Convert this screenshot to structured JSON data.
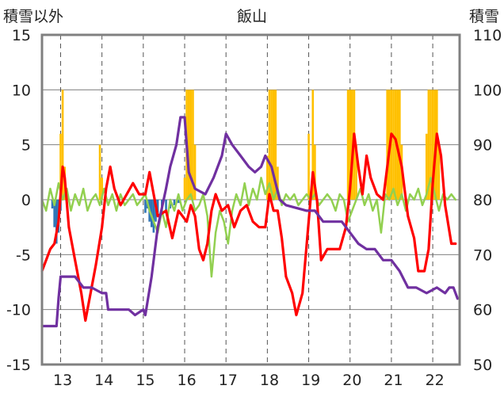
{
  "chart_data": {
    "type": "line",
    "title": "飯山",
    "left_axis_label": "積雪以外",
    "right_axis_label": "積雪",
    "x_ticks": [
      "13",
      "14",
      "15",
      "16",
      "17",
      "18",
      "19",
      "20",
      "21",
      "22"
    ],
    "y_left": {
      "range": [
        -15,
        15
      ],
      "ticks": [
        "15",
        "10",
        "5",
        "0",
        "-5",
        "-10",
        "-15"
      ]
    },
    "y_right": {
      "range": [
        50,
        110
      ],
      "ticks": [
        "110",
        "100",
        "90",
        "80",
        "70",
        "60",
        "50"
      ]
    },
    "x_range": [
      12.5,
      22.6
    ],
    "grid": {
      "vertical": "dashed",
      "horizontal": "solid"
    },
    "colors": {
      "snowfall_bar": "#FFC000",
      "negative_bar": "#2E75B6",
      "temperature": "#FF0000",
      "snow_depth": "#7030A0",
      "green_series": "#92D050",
      "grid": "#808080",
      "frame": "#808080"
    },
    "series": [
      {
        "key": "snowfall",
        "kind": "bar",
        "axis": "left",
        "points": [
          [
            12.95,
            6
          ],
          [
            13.0,
            10
          ],
          [
            13.05,
            3
          ],
          [
            13.9,
            5
          ],
          [
            13.95,
            2
          ],
          [
            15.95,
            2
          ],
          [
            16.0,
            10
          ],
          [
            16.05,
            10
          ],
          [
            16.1,
            10
          ],
          [
            16.15,
            10
          ],
          [
            16.2,
            5
          ],
          [
            17.95,
            4
          ],
          [
            18.0,
            10
          ],
          [
            18.05,
            10
          ],
          [
            18.1,
            10
          ],
          [
            18.15,
            10
          ],
          [
            18.2,
            3
          ],
          [
            18.95,
            6
          ],
          [
            19.05,
            10
          ],
          [
            19.1,
            5
          ],
          [
            19.9,
            10
          ],
          [
            19.95,
            10
          ],
          [
            20.0,
            10
          ],
          [
            20.05,
            10
          ],
          [
            20.1,
            5
          ],
          [
            20.85,
            10
          ],
          [
            20.9,
            10
          ],
          [
            20.95,
            10
          ],
          [
            21.0,
            10
          ],
          [
            21.05,
            10
          ],
          [
            21.1,
            10
          ],
          [
            21.15,
            10
          ],
          [
            21.2,
            5
          ],
          [
            21.8,
            6
          ],
          [
            21.85,
            10
          ],
          [
            21.9,
            10
          ],
          [
            21.95,
            10
          ],
          [
            22.0,
            10
          ],
          [
            22.05,
            10
          ],
          [
            22.1,
            5
          ]
        ]
      },
      {
        "key": "negative",
        "kind": "bar",
        "axis": "left",
        "points": [
          [
            12.75,
            -0.8
          ],
          [
            12.8,
            -2.5
          ],
          [
            12.85,
            -4
          ],
          [
            12.9,
            -3
          ],
          [
            12.95,
            -1
          ],
          [
            15.0,
            -1.2
          ],
          [
            15.05,
            -0.8
          ],
          [
            15.1,
            -2
          ],
          [
            15.15,
            -2.5
          ],
          [
            15.2,
            -3
          ],
          [
            15.25,
            -2
          ],
          [
            15.3,
            -1.5
          ],
          [
            15.4,
            -1.2
          ],
          [
            15.5,
            -1
          ],
          [
            15.6,
            -0.8
          ],
          [
            15.7,
            -0.5
          ],
          [
            15.8,
            -0.3
          ]
        ]
      },
      {
        "key": "temperature",
        "kind": "line",
        "axis": "left",
        "points": [
          [
            12.5,
            -6.5
          ],
          [
            12.6,
            -5.5
          ],
          [
            12.7,
            -4.5
          ],
          [
            12.8,
            -4
          ],
          [
            12.9,
            -2
          ],
          [
            13.0,
            3
          ],
          [
            13.05,
            2
          ],
          [
            13.15,
            -2.5
          ],
          [
            13.3,
            -5.5
          ],
          [
            13.45,
            -8.5
          ],
          [
            13.55,
            -11
          ],
          [
            13.65,
            -9
          ],
          [
            13.8,
            -6
          ],
          [
            13.95,
            -2.5
          ],
          [
            14.05,
            1
          ],
          [
            14.15,
            3
          ],
          [
            14.25,
            1
          ],
          [
            14.4,
            -0.5
          ],
          [
            14.55,
            0.5
          ],
          [
            14.7,
            1.5
          ],
          [
            14.85,
            0.5
          ],
          [
            15.0,
            0.5
          ],
          [
            15.1,
            2.5
          ],
          [
            15.2,
            0.5
          ],
          [
            15.3,
            -1.5
          ],
          [
            15.5,
            -1
          ],
          [
            15.65,
            -3.5
          ],
          [
            15.8,
            -1
          ],
          [
            15.9,
            -1.5
          ],
          [
            16.0,
            -2
          ],
          [
            16.1,
            -0.5
          ],
          [
            16.2,
            -1.5
          ],
          [
            16.3,
            -4.5
          ],
          [
            16.4,
            -5.5
          ],
          [
            16.5,
            -4
          ],
          [
            16.6,
            -1
          ],
          [
            16.7,
            0.5
          ],
          [
            16.85,
            -1
          ],
          [
            17.0,
            -0.5
          ],
          [
            17.15,
            -2.5
          ],
          [
            17.3,
            -1
          ],
          [
            17.45,
            -0.5
          ],
          [
            17.6,
            -2
          ],
          [
            17.75,
            -2.5
          ],
          [
            17.9,
            -2.5
          ],
          [
            18.0,
            0.5
          ],
          [
            18.1,
            -1
          ],
          [
            18.2,
            -1
          ],
          [
            18.3,
            -3.5
          ],
          [
            18.4,
            -7
          ],
          [
            18.55,
            -8.5
          ],
          [
            18.65,
            -10.5
          ],
          [
            18.8,
            -8.5
          ],
          [
            18.95,
            -2
          ],
          [
            19.05,
            2.5
          ],
          [
            19.15,
            0
          ],
          [
            19.25,
            -5.5
          ],
          [
            19.4,
            -4.5
          ],
          [
            19.55,
            -4.5
          ],
          [
            19.7,
            -4.5
          ],
          [
            19.85,
            -2.5
          ],
          [
            19.95,
            1
          ],
          [
            20.05,
            6
          ],
          [
            20.15,
            3
          ],
          [
            20.25,
            0.5
          ],
          [
            20.35,
            4
          ],
          [
            20.45,
            2
          ],
          [
            20.6,
            0.5
          ],
          [
            20.75,
            0
          ],
          [
            20.85,
            3
          ],
          [
            20.95,
            6
          ],
          [
            21.05,
            5.5
          ],
          [
            21.2,
            3
          ],
          [
            21.35,
            -1.5
          ],
          [
            21.5,
            -3.5
          ],
          [
            21.6,
            -6.5
          ],
          [
            21.75,
            -6.5
          ],
          [
            21.85,
            -4.5
          ],
          [
            21.95,
            1.5
          ],
          [
            22.05,
            6
          ],
          [
            22.15,
            4
          ],
          [
            22.25,
            -0.5
          ],
          [
            22.4,
            -4
          ],
          [
            22.5,
            -4
          ]
        ]
      },
      {
        "key": "snow_depth",
        "kind": "line",
        "axis": "right",
        "points": [
          [
            12.5,
            57
          ],
          [
            12.85,
            57
          ],
          [
            12.9,
            62
          ],
          [
            12.95,
            66
          ],
          [
            13.3,
            66
          ],
          [
            13.5,
            64
          ],
          [
            13.7,
            64
          ],
          [
            13.95,
            63
          ],
          [
            14.05,
            63
          ],
          [
            14.1,
            60
          ],
          [
            14.6,
            60
          ],
          [
            14.75,
            59
          ],
          [
            14.95,
            60
          ],
          [
            15.0,
            59
          ],
          [
            15.15,
            66
          ],
          [
            15.3,
            75
          ],
          [
            15.5,
            82
          ],
          [
            15.6,
            86
          ],
          [
            15.75,
            90
          ],
          [
            15.85,
            95
          ],
          [
            15.95,
            95
          ],
          [
            16.05,
            85
          ],
          [
            16.2,
            82
          ],
          [
            16.45,
            81
          ],
          [
            16.65,
            84
          ],
          [
            16.85,
            88
          ],
          [
            16.95,
            92
          ],
          [
            17.1,
            90
          ],
          [
            17.3,
            88
          ],
          [
            17.5,
            86
          ],
          [
            17.65,
            85
          ],
          [
            17.8,
            86
          ],
          [
            17.9,
            88
          ],
          [
            18.05,
            86
          ],
          [
            18.25,
            80
          ],
          [
            18.4,
            79
          ],
          [
            18.9,
            78
          ],
          [
            19.1,
            78
          ],
          [
            19.3,
            76
          ],
          [
            19.75,
            76
          ],
          [
            19.95,
            74
          ],
          [
            20.15,
            72
          ],
          [
            20.35,
            71
          ],
          [
            20.55,
            71
          ],
          [
            20.75,
            69
          ],
          [
            20.95,
            69
          ],
          [
            21.15,
            67
          ],
          [
            21.35,
            64
          ],
          [
            21.55,
            64
          ],
          [
            21.8,
            63
          ],
          [
            22.05,
            64
          ],
          [
            22.25,
            63
          ],
          [
            22.35,
            64
          ],
          [
            22.45,
            64
          ],
          [
            22.55,
            62
          ]
        ]
      },
      {
        "key": "green",
        "kind": "line",
        "axis": "left",
        "points": [
          [
            12.5,
            0
          ],
          [
            12.6,
            -1
          ],
          [
            12.7,
            1
          ],
          [
            12.8,
            -0.5
          ],
          [
            12.9,
            1.5
          ],
          [
            13.0,
            0
          ],
          [
            13.1,
            1
          ],
          [
            13.2,
            -1
          ],
          [
            13.3,
            0.5
          ],
          [
            13.4,
            -0.5
          ],
          [
            13.5,
            1
          ],
          [
            13.6,
            -1
          ],
          [
            13.7,
            0
          ],
          [
            13.8,
            0.5
          ],
          [
            13.9,
            -0.5
          ],
          [
            14.0,
            1
          ],
          [
            14.1,
            -0.5
          ],
          [
            14.2,
            0.5
          ],
          [
            14.3,
            -1
          ],
          [
            14.4,
            0.5
          ],
          [
            14.5,
            -0.5
          ],
          [
            14.6,
            0
          ],
          [
            14.7,
            0.5
          ],
          [
            14.8,
            -0.5
          ],
          [
            14.9,
            0
          ],
          [
            15.0,
            0.5
          ],
          [
            15.1,
            -1
          ],
          [
            15.2,
            -2
          ],
          [
            15.3,
            -3
          ],
          [
            15.4,
            -1
          ],
          [
            15.5,
            -2.5
          ],
          [
            15.6,
            0
          ],
          [
            15.7,
            -1
          ],
          [
            15.8,
            0.5
          ],
          [
            15.9,
            -1
          ],
          [
            16.0,
            0
          ],
          [
            16.1,
            0.5
          ],
          [
            16.2,
            -1
          ],
          [
            16.3,
            -0.5
          ],
          [
            16.4,
            0.5
          ],
          [
            16.5,
            -1.5
          ],
          [
            16.6,
            -7
          ],
          [
            16.7,
            -3
          ],
          [
            16.8,
            -1
          ],
          [
            16.9,
            -2
          ],
          [
            17.0,
            -4
          ],
          [
            17.1,
            -1
          ],
          [
            17.2,
            0.5
          ],
          [
            17.3,
            -0.5
          ],
          [
            17.4,
            1.5
          ],
          [
            17.5,
            -0.5
          ],
          [
            17.6,
            1
          ],
          [
            17.7,
            0
          ],
          [
            17.8,
            2
          ],
          [
            17.9,
            0.5
          ],
          [
            18.0,
            1.5
          ],
          [
            18.1,
            0
          ],
          [
            18.2,
            1
          ],
          [
            18.3,
            -0.5
          ],
          [
            18.4,
            0.5
          ],
          [
            18.5,
            0
          ],
          [
            18.6,
            0.5
          ],
          [
            18.7,
            -0.5
          ],
          [
            18.8,
            0
          ],
          [
            18.9,
            0.5
          ],
          [
            19.0,
            0
          ],
          [
            19.1,
            0.5
          ],
          [
            19.2,
            -0.5
          ],
          [
            19.3,
            0
          ],
          [
            19.4,
            0.5
          ],
          [
            19.5,
            0
          ],
          [
            19.6,
            -1
          ],
          [
            19.7,
            0.5
          ],
          [
            19.8,
            0
          ],
          [
            19.9,
            -2
          ],
          [
            20.0,
            -1
          ],
          [
            20.1,
            0
          ],
          [
            20.2,
            1
          ],
          [
            20.3,
            -0.5
          ],
          [
            20.4,
            0.5
          ],
          [
            20.5,
            -1
          ],
          [
            20.6,
            0
          ],
          [
            20.7,
            -3
          ],
          [
            20.8,
            0.5
          ],
          [
            20.9,
            0
          ],
          [
            21.0,
            1
          ],
          [
            21.1,
            -0.5
          ],
          [
            21.2,
            0.5
          ],
          [
            21.3,
            -1
          ],
          [
            21.4,
            0.5
          ],
          [
            21.5,
            0
          ],
          [
            21.6,
            1
          ],
          [
            21.7,
            -0.5
          ],
          [
            21.8,
            0.5
          ],
          [
            21.9,
            2
          ],
          [
            22.0,
            0.5
          ],
          [
            22.1,
            -1
          ],
          [
            22.2,
            0.5
          ],
          [
            22.3,
            0
          ],
          [
            22.4,
            0.5
          ],
          [
            22.5,
            0
          ]
        ]
      }
    ]
  }
}
